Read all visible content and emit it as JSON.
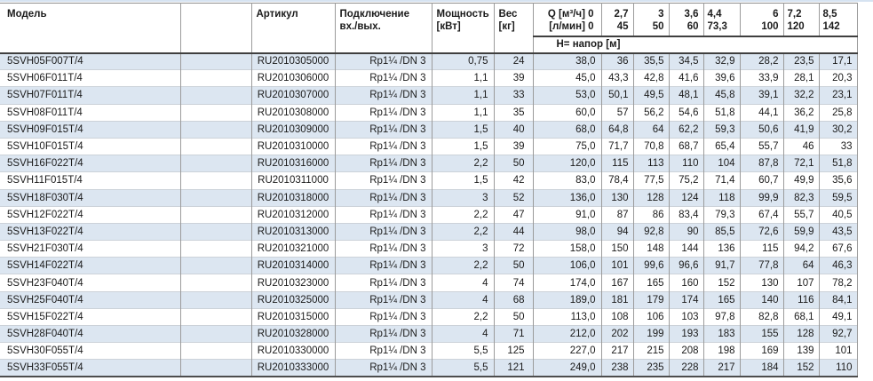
{
  "page": {
    "background": "#ffffff",
    "shaded_row_color": "#dce6f1",
    "border_color": "#9b9b9b"
  },
  "table": {
    "headers": {
      "model": "Модель",
      "article": "Артикул",
      "connection_line1": "Подключение",
      "connection_line2": "вх./вых.",
      "power_line1": "Мощность",
      "power_line2": "[кВт]",
      "weight_line1": "Вес",
      "weight_line2": "[кг]",
      "flow_line1": "Q [м³/ч] 0",
      "flow_line2": "[л/мин] 0",
      "head_row_label": "Н= напор [м]"
    },
    "flow_columns": [
      {
        "m3h": "2,7",
        "lmin": "45"
      },
      {
        "m3h": "3",
        "lmin": "50"
      },
      {
        "m3h": "3,6",
        "lmin": "60"
      },
      {
        "m3h": "4,4",
        "lmin": "73,3"
      },
      {
        "m3h": "6",
        "lmin": "100"
      },
      {
        "m3h": "7,2",
        "lmin": "120"
      },
      {
        "m3h": "8,5",
        "lmin": "142"
      }
    ],
    "rows": [
      {
        "model": "5SVH05F007T/4",
        "article": "RU2010305000",
        "connection": "Rp1¼ /DN 3",
        "power_kw": "0,75",
        "weight_kg": "24",
        "head_at_q0": "38,0",
        "heads": [
          "36",
          "35,5",
          "34,5",
          "32,9",
          "28,2",
          "23,5",
          "17,1"
        ]
      },
      {
        "model": "5SVH06F011T/4",
        "article": "RU2010306000",
        "connection": "Rp1¼ /DN 3",
        "power_kw": "1,1",
        "weight_kg": "39",
        "head_at_q0": "45,0",
        "heads": [
          "43,3",
          "42,8",
          "41,6",
          "39,6",
          "33,9",
          "28,1",
          "20,3"
        ]
      },
      {
        "model": "5SVH07F011T/4",
        "article": "RU2010307000",
        "connection": "Rp1¼ /DN 3",
        "power_kw": "1,1",
        "weight_kg": "33",
        "head_at_q0": "53,0",
        "heads": [
          "50,1",
          "49,5",
          "48,1",
          "45,8",
          "39,1",
          "32,2",
          "23,1"
        ]
      },
      {
        "model": "5SVH08F011T/4",
        "article": "RU2010308000",
        "connection": "Rp1¼ /DN 3",
        "power_kw": "1,1",
        "weight_kg": "35",
        "head_at_q0": "60,0",
        "heads": [
          "57",
          "56,2",
          "54,6",
          "51,8",
          "44,1",
          "36,2",
          "25,8"
        ]
      },
      {
        "model": "5SVH09F015T/4",
        "article": "RU2010309000",
        "connection": "Rp1¼ /DN 3",
        "power_kw": "1,5",
        "weight_kg": "40",
        "head_at_q0": "68,0",
        "heads": [
          "64,8",
          "64",
          "62,2",
          "59,3",
          "50,6",
          "41,9",
          "30,2"
        ]
      },
      {
        "model": "5SVH10F015T/4",
        "article": "RU2010310000",
        "connection": "Rp1¼ /DN 3",
        "power_kw": "1,5",
        "weight_kg": "39",
        "head_at_q0": "75,0",
        "heads": [
          "71,7",
          "70,8",
          "68,7",
          "65,4",
          "55,7",
          "46",
          "33"
        ]
      },
      {
        "model": "5SVH16F022T/4",
        "article": "RU2010316000",
        "connection": "Rp1¼ /DN 3",
        "power_kw": "2,2",
        "weight_kg": "50",
        "head_at_q0": "120,0",
        "heads": [
          "115",
          "113",
          "110",
          "104",
          "87,8",
          "72,1",
          "51,8"
        ]
      },
      {
        "model": "5SVH11F015T/4",
        "article": "RU2010311000",
        "connection": "Rp1¼ /DN 3",
        "power_kw": "1,5",
        "weight_kg": "42",
        "head_at_q0": "83,0",
        "heads": [
          "78,4",
          "77,5",
          "75,2",
          "71,4",
          "60,7",
          "49,9",
          "35,6"
        ]
      },
      {
        "model": "5SVH18F030T/4",
        "article": "RU2010318000",
        "connection": "Rp1¼ /DN 3",
        "power_kw": "3",
        "weight_kg": "52",
        "head_at_q0": "136,0",
        "heads": [
          "130",
          "128",
          "124",
          "118",
          "99,9",
          "82,3",
          "59,5"
        ]
      },
      {
        "model": "5SVH12F022T/4",
        "article": "RU2010312000",
        "connection": "Rp1¼ /DN 3",
        "power_kw": "2,2",
        "weight_kg": "47",
        "head_at_q0": "91,0",
        "heads": [
          "87",
          "86",
          "83,4",
          "79,3",
          "67,4",
          "55,7",
          "40,5"
        ]
      },
      {
        "model": "5SVH13F022T/4",
        "article": "RU2010313000",
        "connection": "Rp1¼ /DN 3",
        "power_kw": "2,2",
        "weight_kg": "44",
        "head_at_q0": "98,0",
        "heads": [
          "94",
          "92,8",
          "90",
          "85,5",
          "72,6",
          "59,9",
          "43,5"
        ]
      },
      {
        "model": "5SVH21F030T/4",
        "article": "RU2010321000",
        "connection": "Rp1¼ /DN 3",
        "power_kw": "3",
        "weight_kg": "72",
        "head_at_q0": "158,0",
        "heads": [
          "150",
          "148",
          "144",
          "136",
          "115",
          "94,2",
          "67,6"
        ]
      },
      {
        "model": "5SVH14F022T/4",
        "article": "RU2010314000",
        "connection": "Rp1¼ /DN 3",
        "power_kw": "2,2",
        "weight_kg": "50",
        "head_at_q0": "106,0",
        "heads": [
          "101",
          "99,6",
          "96,6",
          "91,7",
          "77,8",
          "64",
          "46,3"
        ]
      },
      {
        "model": "5SVH23F040T/4",
        "article": "RU2010323000",
        "connection": "Rp1¼ /DN 3",
        "power_kw": "4",
        "weight_kg": "74",
        "head_at_q0": "174,0",
        "heads": [
          "167",
          "165",
          "160",
          "152",
          "130",
          "107",
          "78,2"
        ]
      },
      {
        "model": "5SVH25F040T/4",
        "article": "RU2010325000",
        "connection": "Rp1¼ /DN 3",
        "power_kw": "4",
        "weight_kg": "68",
        "head_at_q0": "189,0",
        "heads": [
          "181",
          "179",
          "174",
          "165",
          "140",
          "116",
          "84,1"
        ]
      },
      {
        "model": "5SVH15F022T/4",
        "article": "RU2010315000",
        "connection": "Rp1¼ /DN 3",
        "power_kw": "2,2",
        "weight_kg": "50",
        "head_at_q0": "113,0",
        "heads": [
          "108",
          "106",
          "103",
          "97,8",
          "82,8",
          "68,1",
          "49,1"
        ]
      },
      {
        "model": "5SVH28F040T/4",
        "article": "RU2010328000",
        "connection": "Rp1¼ /DN 3",
        "power_kw": "4",
        "weight_kg": "71",
        "head_at_q0": "212,0",
        "heads": [
          "202",
          "199",
          "193",
          "183",
          "155",
          "128",
          "92,7"
        ]
      },
      {
        "model": "5SVH30F055T/4",
        "article": "RU2010330000",
        "connection": "Rp1¼ /DN 3",
        "power_kw": "5,5",
        "weight_kg": "125",
        "head_at_q0": "227,0",
        "heads": [
          "217",
          "215",
          "208",
          "198",
          "169",
          "139",
          "101"
        ]
      },
      {
        "model": "5SVH33F055T/4",
        "article": "RU2010333000",
        "connection": "Rp1¼ /DN 3",
        "power_kw": "5,5",
        "weight_kg": "121",
        "head_at_q0": "249,0",
        "heads": [
          "238",
          "235",
          "228",
          "217",
          "184",
          "152",
          "110"
        ]
      }
    ]
  }
}
